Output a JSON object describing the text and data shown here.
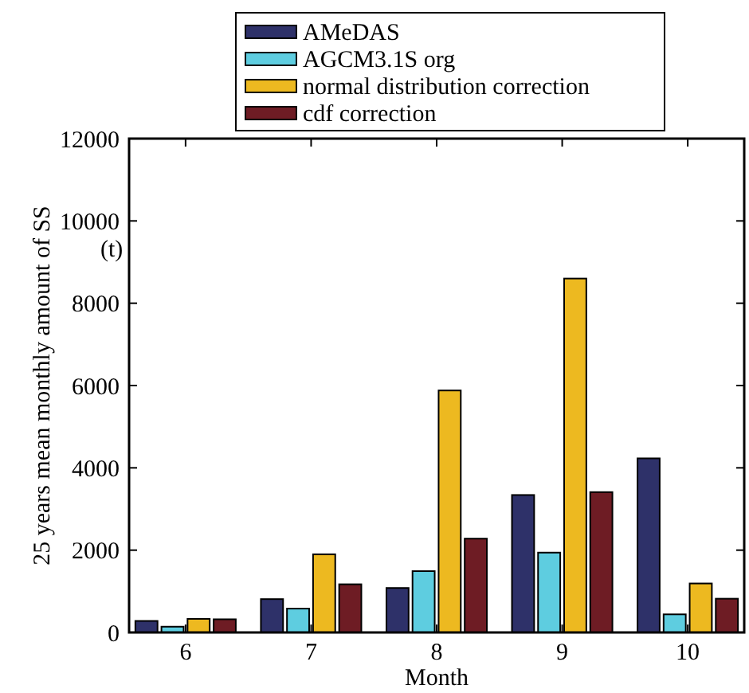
{
  "chart_data": {
    "type": "bar",
    "xlabel": "Month",
    "ylabel": "25 years mean monthly amount of SS",
    "annotations": [
      "(t)"
    ],
    "categories": [
      "6",
      "7",
      "8",
      "9",
      "10"
    ],
    "series": [
      {
        "name": "AMeDAS",
        "color": "#2e3169",
        "values": [
          280,
          810,
          1080,
          3340,
          4230
        ]
      },
      {
        "name": "AGCM3.1S org",
        "color": "#5ecde0",
        "values": [
          140,
          580,
          1490,
          1940,
          440
        ]
      },
      {
        "name": "normal distribution correction",
        "color": "#edb920",
        "values": [
          330,
          1900,
          5880,
          8600,
          1190
        ]
      },
      {
        "name": "cdf correction",
        "color": "#6e1c24",
        "values": [
          320,
          1170,
          2280,
          3410,
          820
        ]
      }
    ],
    "ylim": [
      0,
      12000
    ],
    "yticks": [
      0,
      2000,
      4000,
      6000,
      8000,
      10000,
      12000
    ],
    "grid": false,
    "legend": "top"
  }
}
